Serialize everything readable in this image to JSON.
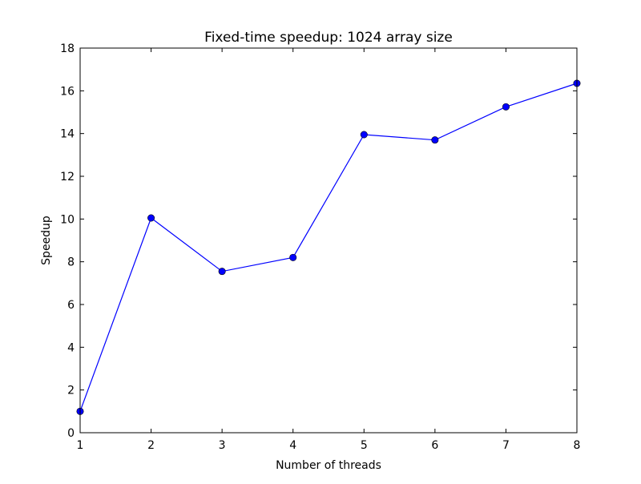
{
  "chart_data": {
    "type": "line",
    "title": "Fixed-time speedup: 1024 array size",
    "xlabel": "Number of threads",
    "ylabel": "Speedup",
    "xlim": [
      1,
      8
    ],
    "ylim": [
      0,
      18
    ],
    "xticks": [
      1,
      2,
      3,
      4,
      5,
      6,
      7,
      8
    ],
    "yticks": [
      0,
      2,
      4,
      6,
      8,
      10,
      12,
      14,
      16,
      18
    ],
    "grid": false,
    "legend": "none",
    "series": [
      {
        "color": "#0000ff",
        "marker": "circle",
        "x": [
          1,
          2,
          3,
          4,
          5,
          6,
          7,
          8
        ],
        "y": [
          1.0,
          10.05,
          7.55,
          8.2,
          13.95,
          13.7,
          15.25,
          16.35
        ]
      }
    ]
  }
}
